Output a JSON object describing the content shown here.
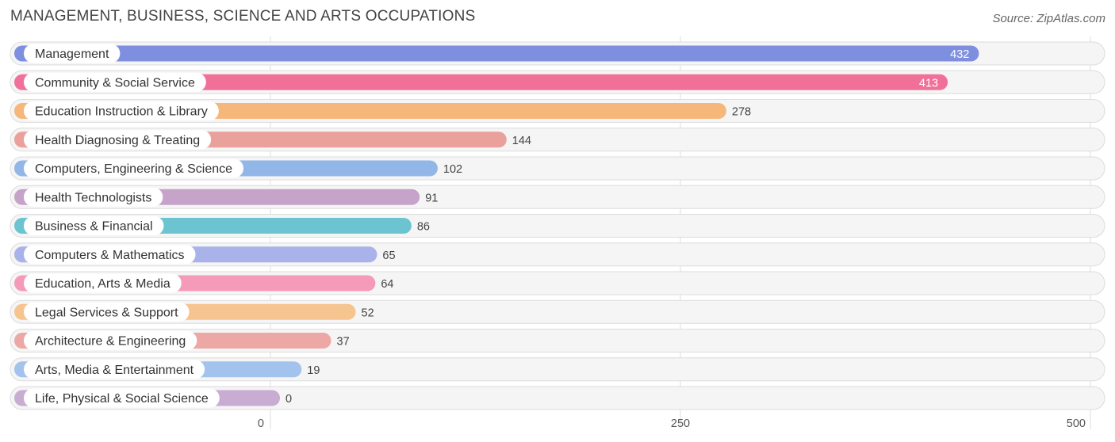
{
  "title": "MANAGEMENT, BUSINESS, SCIENCE AND ARTS OCCUPATIONS",
  "source": "Source: ZipAtlas.com",
  "chart_data": {
    "type": "bar",
    "orientation": "horizontal",
    "categories": [
      "Management",
      "Community & Social Service",
      "Education Instruction & Library",
      "Health Diagnosing & Treating",
      "Computers, Engineering & Science",
      "Health Technologists",
      "Business & Financial",
      "Computers & Mathematics",
      "Education, Arts & Media",
      "Legal Services & Support",
      "Architecture & Engineering",
      "Arts, Media & Entertainment",
      "Life, Physical & Social Science"
    ],
    "values": [
      432,
      413,
      278,
      144,
      102,
      91,
      86,
      65,
      64,
      52,
      37,
      19,
      0
    ],
    "value_labels": [
      "432",
      "413",
      "278",
      "144",
      "102",
      "91",
      "86",
      "65",
      "64",
      "52",
      "37",
      "19",
      "0"
    ],
    "colors": [
      "#7f8fe0",
      "#f0709a",
      "#f6b87a",
      "#eaa09b",
      "#92b6e8",
      "#c6a3c9",
      "#6bc4cf",
      "#a9b3ea",
      "#f59ab8",
      "#f6c48e",
      "#eda7a5",
      "#a3c3ec",
      "#c8acd2"
    ],
    "xlim": [
      0,
      500
    ],
    "xticks": [
      0,
      250,
      500
    ],
    "xtick_labels": [
      "0",
      "250",
      "500"
    ],
    "grid": true,
    "legend": "none"
  }
}
